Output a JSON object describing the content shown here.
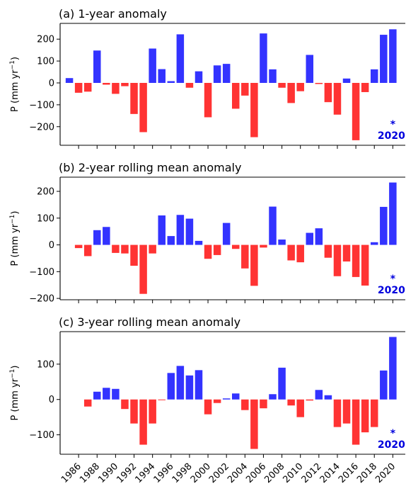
{
  "chart_data": [
    {
      "type": "bar",
      "title": "(a) 1-year anomaly",
      "ylabel_main": "P (mm yr",
      "ylabel_sup": "−1",
      "ylabel_tail": ")",
      "x": [
        1985,
        1986,
        1987,
        1988,
        1989,
        1990,
        1991,
        1992,
        1993,
        1994,
        1995,
        1996,
        1997,
        1998,
        1999,
        2000,
        2001,
        2002,
        2003,
        2004,
        2005,
        2006,
        2007,
        2008,
        2009,
        2010,
        2011,
        2012,
        2013,
        2014,
        2015,
        2016,
        2017,
        2018,
        2019,
        2020
      ],
      "values": [
        22,
        -45,
        -40,
        148,
        -8,
        -50,
        -15,
        -142,
        -225,
        157,
        63,
        8,
        222,
        -22,
        53,
        -157,
        80,
        87,
        -118,
        -58,
        -248,
        226,
        62,
        -22,
        -92,
        -38,
        128,
        -5,
        -88,
        -145,
        20,
        -262,
        -42,
        62,
        220,
        245
      ],
      "ylim": [
        -285,
        272
      ],
      "yticks": [
        -200,
        -100,
        0,
        100,
        200
      ],
      "annotation_star": "*",
      "annotation_year": "2020"
    },
    {
      "type": "bar",
      "title": "(b) 2-year rolling mean anomaly",
      "ylabel_main": "P (mm yr",
      "ylabel_sup": "−1",
      "ylabel_tail": ")",
      "x": [
        1985,
        1986,
        1987,
        1988,
        1989,
        1990,
        1991,
        1992,
        1993,
        1994,
        1995,
        1996,
        1997,
        1998,
        1999,
        2000,
        2001,
        2002,
        2003,
        2004,
        2005,
        2006,
        2007,
        2008,
        2009,
        2010,
        2011,
        2012,
        2013,
        2014,
        2015,
        2016,
        2017,
        2018,
        2019,
        2020
      ],
      "values": [
        0,
        -12,
        -42,
        55,
        67,
        -30,
        -32,
        -78,
        -183,
        -32,
        110,
        33,
        112,
        98,
        15,
        -52,
        -38,
        82,
        -15,
        -88,
        -153,
        -10,
        143,
        20,
        -58,
        -65,
        45,
        62,
        -48,
        -117,
        -62,
        -120,
        -152,
        10,
        142,
        233
      ],
      "ylim": [
        -205,
        253
      ],
      "yticks": [
        -200,
        -100,
        0,
        100,
        200
      ],
      "annotation_star": "*",
      "annotation_year": "2020"
    },
    {
      "type": "bar",
      "title": "(c) 3-year rolling mean anomaly",
      "ylabel_main": "P (mm yr",
      "ylabel_sup": "−1",
      "ylabel_tail": ")",
      "x": [
        1985,
        1986,
        1987,
        1988,
        1989,
        1990,
        1991,
        1992,
        1993,
        1994,
        1995,
        1996,
        1997,
        1998,
        1999,
        2000,
        2001,
        2002,
        2003,
        2004,
        2005,
        2006,
        2007,
        2008,
        2009,
        2010,
        2011,
        2012,
        2013,
        2014,
        2015,
        2016,
        2017,
        2018,
        2019,
        2020
      ],
      "values": [
        0,
        0,
        -20,
        22,
        33,
        30,
        -27,
        -68,
        -128,
        -68,
        -2,
        75,
        95,
        68,
        83,
        -42,
        -10,
        3,
        17,
        -30,
        -140,
        -25,
        15,
        90,
        -17,
        -50,
        -3,
        27,
        12,
        -78,
        -68,
        -128,
        -93,
        -78,
        82,
        177
      ],
      "ylim": [
        -155,
        192
      ],
      "yticks": [
        -100,
        0,
        100
      ],
      "annotation_star": "*",
      "annotation_year": "2020"
    }
  ],
  "x_axis": {
    "tick_labels": [
      "1986",
      "1988",
      "1990",
      "1992",
      "1994",
      "1996",
      "1998",
      "2000",
      "2002",
      "2004",
      "2006",
      "2008",
      "2010",
      "2012",
      "2014",
      "2016",
      "2018",
      "2020"
    ]
  },
  "colors": {
    "positive": "#3333ff",
    "negative": "#ff3333",
    "annotation": "#0000dd",
    "axis": "#000000"
  }
}
